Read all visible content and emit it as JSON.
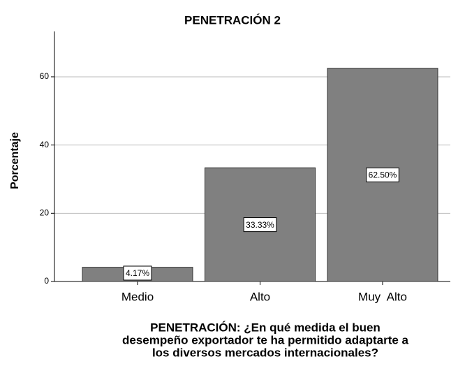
{
  "chart_data": {
    "type": "bar",
    "title": "PENETRACIÓN 2",
    "y_label": "Porcentaje",
    "x_label": [
      "PENETRACIÓN: ¿En qué medida el buen",
      "desempeño exportador te ha permitido adaptarte a",
      "los diversos mercados internacionales?"
    ],
    "categories": [
      "Medio",
      "Alto",
      "Muy  Alto"
    ],
    "values": [
      4.17,
      33.33,
      62.5
    ],
    "value_labels": [
      "4.17%",
      "33.33%",
      "62.50%"
    ],
    "color": "#808080",
    "ylim": [
      0,
      73.3
    ],
    "yticks": [
      0,
      20,
      40,
      60
    ],
    "grid": true
  }
}
